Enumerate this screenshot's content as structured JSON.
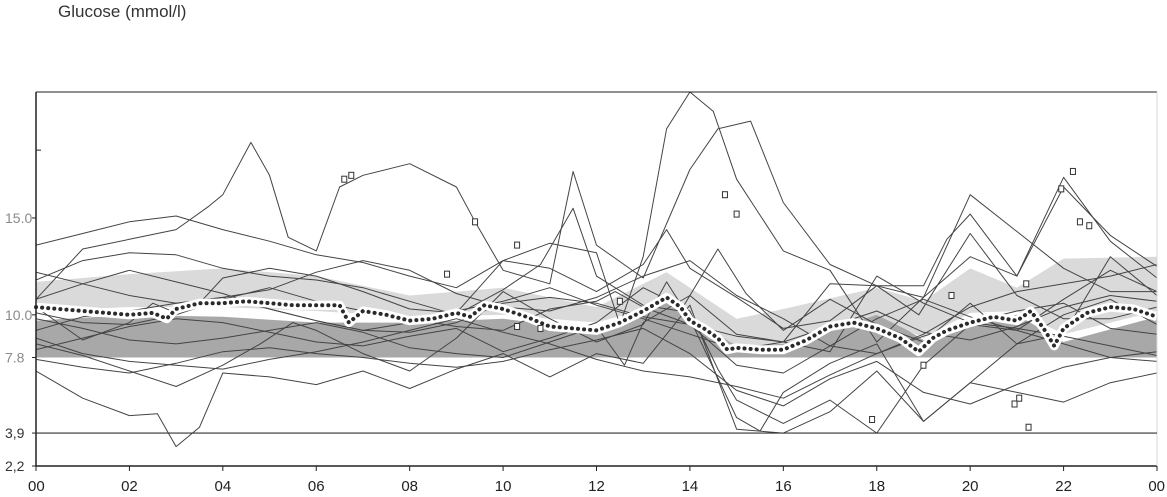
{
  "chart_data": {
    "type": "line",
    "title": "Glucose (mmol/l)",
    "xlabel": "",
    "ylabel": "Glucose (mmol/l)",
    "x_tick_labels": [
      "00",
      "02",
      "04",
      "06",
      "08",
      "10",
      "12",
      "14",
      "16",
      "18",
      "20",
      "22",
      "00"
    ],
    "xlim_hours": [
      0,
      24
    ],
    "ylim": [
      2.2,
      21.5
    ],
    "y_tick_labels": [
      {
        "label": "2,2",
        "value": 2.2
      },
      {
        "label": "3,9",
        "value": 3.9
      },
      {
        "label": "7.8",
        "value": 7.8
      },
      {
        "label": "10.0",
        "value": 10.0
      },
      {
        "label": "15.0",
        "value": 15.0
      }
    ],
    "reference_lines": [
      {
        "label": "3,9",
        "value": 3.9
      }
    ],
    "target_band": [
      7.8,
      10.0
    ],
    "bands": [
      {
        "name": "lower-quartile-band",
        "color": "#a8a8a8",
        "hours": [
          0,
          2,
          4,
          6,
          8,
          10,
          12,
          13.5,
          15,
          16,
          18,
          19,
          20,
          21,
          22,
          24
        ],
        "low": [
          7.8,
          7.8,
          7.8,
          7.8,
          7.8,
          7.8,
          7.8,
          7.8,
          7.8,
          7.8,
          7.8,
          7.8,
          7.8,
          7.8,
          7.8,
          7.8
        ],
        "high": [
          9.7,
          10.0,
          9.9,
          9.6,
          9.6,
          9.8,
          9.2,
          11.0,
          9.0,
          8.8,
          10.2,
          8.7,
          9.6,
          10.0,
          8.6,
          9.9
        ]
      },
      {
        "name": "upper-quartile-band",
        "color": "#dadada",
        "hours": [
          0,
          2,
          4,
          6,
          8,
          10,
          12,
          13.5,
          15,
          16,
          18,
          19,
          20,
          21,
          22,
          24
        ],
        "low": [
          10.2,
          10.4,
          10.4,
          10.2,
          9.9,
          10.0,
          9.6,
          10.6,
          8.4,
          8.5,
          10.0,
          8.8,
          10.1,
          10.2,
          9.0,
          10.2
        ],
        "high": [
          11.7,
          12.1,
          12.4,
          12.0,
          11.0,
          11.4,
          10.4,
          12.2,
          9.8,
          10.3,
          11.4,
          10.7,
          12.4,
          11.4,
          12.9,
          13.0
        ]
      }
    ],
    "series": [
      {
        "role": "median",
        "style": "dotted",
        "x": [
          0,
          0.5,
          1,
          1.5,
          2,
          2.5,
          2.8,
          3,
          3.5,
          4,
          4.5,
          5,
          5.5,
          6,
          6.5,
          6.7,
          7,
          7.5,
          8,
          8.5,
          9,
          9.3,
          9.6,
          10,
          10.5,
          11,
          11.5,
          12,
          12.5,
          13,
          13.5,
          13.8,
          14,
          14.3,
          14.6,
          14.8,
          15,
          15.5,
          16,
          16.5,
          17,
          17.5,
          18,
          18.5,
          18.9,
          19.2,
          19.5,
          20,
          20.5,
          21,
          21.3,
          21.6,
          21.8,
          22,
          22.5,
          23,
          23.5,
          24
        ],
        "y": [
          10.4,
          10.3,
          10.2,
          10.1,
          10.0,
          10.1,
          9.8,
          10.3,
          10.6,
          10.6,
          10.7,
          10.6,
          10.5,
          10.5,
          10.5,
          9.6,
          10.2,
          10.0,
          9.7,
          9.8,
          10.1,
          9.9,
          10.5,
          10.3,
          9.9,
          9.4,
          9.3,
          9.2,
          9.6,
          10.2,
          10.9,
          10.4,
          9.7,
          9.3,
          8.8,
          8.2,
          8.3,
          8.2,
          8.2,
          8.7,
          9.4,
          9.6,
          9.3,
          8.8,
          8.1,
          8.8,
          9.2,
          9.6,
          9.9,
          9.7,
          10.2,
          9.2,
          8.4,
          9.3,
          10.1,
          10.4,
          10.3,
          9.9
        ]
      },
      {
        "role": "individual-day",
        "x": [
          0,
          1,
          2,
          3,
          3.7,
          4,
          4.6,
          5,
          5.4,
          6,
          6.5,
          7,
          8,
          9,
          9.4,
          10,
          11,
          11.5,
          12,
          13,
          14,
          14.6,
          15.3,
          16,
          17,
          18,
          18.9,
          20,
          21,
          22,
          23,
          24
        ],
        "y": [
          10.8,
          13.4,
          13.9,
          14.4,
          15.6,
          16.2,
          18.9,
          17.2,
          14.0,
          13.3,
          16.6,
          17.2,
          17.8,
          16.6,
          14.8,
          12.3,
          11.6,
          17.4,
          13.6,
          11.9,
          17.5,
          19.6,
          20.0,
          15.8,
          12.6,
          11.5,
          10.0,
          14.2,
          11.0,
          9.8,
          9.8,
          10.4
        ]
      },
      {
        "role": "individual-day",
        "x": [
          0,
          1,
          2,
          3,
          4,
          5,
          6,
          7,
          8,
          9,
          10,
          11,
          12,
          13,
          13.5,
          14,
          15,
          16,
          17,
          18,
          19,
          20,
          21,
          22,
          23,
          24
        ],
        "y": [
          13.6,
          14.2,
          14.8,
          15.1,
          14.4,
          13.8,
          13.1,
          12.7,
          12.0,
          11.4,
          12.8,
          12.4,
          11.2,
          12.6,
          14.4,
          12.4,
          10.9,
          9.3,
          9.7,
          11.5,
          10.9,
          16.2,
          14.3,
          12.4,
          11.2,
          11.2
        ]
      },
      {
        "role": "individual-day",
        "x": [
          0,
          1,
          2,
          2.5,
          3,
          3.5,
          4,
          5,
          6,
          7,
          8,
          9,
          10,
          11,
          12,
          12.5,
          13,
          13.5,
          14,
          14.5,
          15,
          16,
          17,
          18,
          19,
          20,
          21,
          22,
          23,
          24
        ],
        "y": [
          10.4,
          8.7,
          9.6,
          10.6,
          10.1,
          10.6,
          11.9,
          12.4,
          12.0,
          11.2,
          10.3,
          10.1,
          12.8,
          13.7,
          13.2,
          9.5,
          13.0,
          19.6,
          21.5,
          20.5,
          17.0,
          13.3,
          12.3,
          8.6,
          10.9,
          13.0,
          12.0,
          17.1,
          13.8,
          11.9
        ]
      },
      {
        "role": "individual-day",
        "x": [
          0,
          1,
          2,
          3,
          4,
          4.8,
          5.5,
          6,
          7,
          8,
          9,
          10,
          11,
          12,
          13,
          13.5,
          14,
          15,
          15.5,
          16,
          17,
          18,
          19,
          20,
          21,
          22,
          23,
          24
        ],
        "y": [
          8.5,
          7.9,
          7.1,
          6.3,
          7.4,
          8.5,
          9.6,
          9.2,
          8.0,
          7.1,
          8.8,
          11.2,
          9.8,
          8.6,
          9.5,
          11.7,
          9.8,
          4.7,
          4.0,
          6.0,
          7.5,
          8.5,
          4.5,
          6.5,
          8.5,
          10.0,
          10.8,
          9.5
        ]
      },
      {
        "role": "individual-day",
        "x": [
          0,
          1,
          2,
          2.6,
          3,
          3.5,
          4,
          5,
          6,
          7,
          8,
          9,
          10,
          11,
          12,
          13,
          14,
          15,
          16,
          17,
          18,
          19,
          20,
          21,
          22,
          23,
          24
        ],
        "y": [
          7.1,
          5.7,
          4.8,
          4.9,
          3.2,
          4.2,
          7.0,
          6.8,
          6.4,
          7.1,
          6.2,
          7.2,
          8.0,
          6.8,
          8.0,
          7.5,
          10.5,
          4.1,
          3.9,
          5.0,
          7.1,
          4.5,
          6.5,
          6.0,
          5.5,
          6.5,
          7.0
        ]
      },
      {
        "role": "individual-day",
        "x": [
          0,
          1,
          2,
          3,
          4,
          5,
          6,
          7,
          8,
          9,
          10,
          10.8,
          11.5,
          12,
          13,
          13.8,
          14.6,
          15.2,
          16,
          17,
          18,
          19,
          20,
          21,
          22,
          23,
          24
        ],
        "y": [
          11.8,
          12.8,
          13.2,
          13.1,
          12.4,
          12.0,
          11.8,
          11.4,
          10.7,
          10.0,
          11.3,
          12.6,
          15.5,
          12.0,
          10.5,
          10.2,
          13.4,
          11.1,
          9.2,
          10.8,
          9.5,
          8.6,
          10.6,
          8.5,
          9.0,
          13.0,
          11.0
        ]
      },
      {
        "role": "individual-day",
        "x": [
          0,
          1,
          2,
          3,
          4,
          5,
          6,
          7,
          8,
          9,
          10,
          11,
          12,
          12.4,
          13,
          14,
          15,
          16,
          17,
          18,
          19,
          19.5,
          20,
          20.5,
          21,
          22,
          23,
          24
        ],
        "y": [
          10.1,
          9.6,
          9.5,
          10.0,
          10.8,
          11.4,
          10.7,
          10.2,
          9.8,
          9.4,
          9.2,
          10.3,
          10.7,
          11.2,
          10.4,
          9.5,
          8.9,
          8.6,
          11.6,
          11.5,
          11.5,
          13.9,
          15.2,
          13.6,
          12.0,
          16.6,
          14.1,
          12.5
        ]
      },
      {
        "role": "individual-day",
        "x": [
          0,
          1,
          2,
          3,
          4,
          5,
          6,
          7,
          8,
          9,
          10,
          11,
          12,
          12.6,
          13,
          14,
          15,
          16,
          17,
          18,
          19,
          20,
          21,
          22,
          23,
          24
        ],
        "y": [
          9.8,
          9.3,
          8.7,
          8.5,
          8.8,
          9.2,
          9.6,
          9.1,
          8.3,
          8.0,
          7.8,
          8.6,
          9.4,
          7.4,
          9.6,
          11.0,
          9.0,
          8.6,
          8.1,
          12.0,
          10.6,
          9.6,
          10.2,
          10.6,
          9.3,
          9.0
        ]
      },
      {
        "role": "individual-day",
        "x": [
          0,
          1,
          2,
          3,
          4,
          5,
          6,
          7,
          8,
          9,
          10,
          11,
          12,
          13,
          14,
          14.6,
          15,
          16,
          17,
          18,
          19,
          20,
          21,
          22,
          23,
          24
        ],
        "y": [
          8.2,
          8.8,
          9.4,
          9.8,
          9.6,
          9.1,
          8.6,
          8.4,
          8.9,
          9.3,
          8.1,
          8.8,
          9.6,
          11.4,
          10.2,
          7.2,
          5.6,
          4.4,
          5.6,
          3.9,
          7.4,
          9.5,
          9.2,
          8.5,
          7.8,
          7.6
        ]
      },
      {
        "role": "individual-day",
        "x": [
          0,
          1,
          2,
          3,
          4,
          5,
          6,
          7,
          8,
          9,
          10,
          11,
          12,
          13,
          14,
          15,
          16,
          17,
          18,
          19,
          20,
          21,
          22,
          23,
          24
        ],
        "y": [
          9.2,
          9.9,
          10.2,
          10.6,
          10.9,
          10.3,
          9.7,
          9.2,
          9.1,
          9.6,
          10.6,
          10.9,
          10.6,
          9.9,
          9.5,
          7.4,
          7.0,
          8.4,
          9.8,
          10.8,
          9.9,
          9.2,
          10.8,
          12.3,
          11.2
        ]
      },
      {
        "role": "individual-day",
        "x": [
          0,
          1,
          2,
          3,
          4,
          5,
          6,
          7,
          8,
          9,
          10,
          11,
          12,
          13,
          14,
          15,
          16,
          17,
          18,
          19,
          20,
          21,
          22,
          23,
          24
        ],
        "y": [
          12.2,
          11.6,
          11.0,
          10.6,
          10.9,
          11.3,
          12.2,
          12.8,
          12.3,
          11.1,
          10.4,
          10.2,
          10.9,
          12.0,
          12.8,
          11.0,
          9.8,
          8.4,
          8.0,
          9.0,
          10.4,
          11.2,
          11.6,
          12.0,
          12.6
        ]
      },
      {
        "role": "individual-day",
        "x": [
          0,
          1,
          2,
          3,
          4,
          5,
          6,
          7,
          8,
          9,
          10,
          11,
          12,
          13,
          14,
          15,
          16,
          17,
          18,
          19,
          20,
          21,
          22,
          23,
          24
        ],
        "y": [
          8.8,
          8.0,
          7.6,
          7.4,
          7.2,
          7.7,
          8.1,
          8.6,
          9.2,
          9.8,
          9.1,
          8.5,
          7.7,
          7.1,
          6.8,
          6.3,
          5.7,
          6.9,
          8.0,
          8.9,
          9.6,
          9.3,
          8.9,
          8.4,
          7.9
        ]
      },
      {
        "role": "individual-day",
        "x": [
          0,
          1,
          2,
          3,
          4,
          5,
          6,
          7,
          8,
          9,
          10,
          11,
          12,
          13,
          14,
          15,
          16,
          17,
          18,
          19,
          20,
          21,
          22,
          23,
          24
        ],
        "y": [
          10.8,
          11.6,
          12.3,
          11.7,
          11.1,
          10.3,
          9.7,
          9.2,
          9.6,
          10.2,
          10.7,
          11.4,
          10.5,
          9.8,
          9.0,
          8.2,
          8.6,
          9.4,
          10.2,
          9.1,
          8.7,
          9.4,
          10.4,
          11.0,
          10.7
        ]
      },
      {
        "role": "individual-day",
        "x": [
          0,
          1,
          2,
          3,
          4,
          5,
          6,
          7,
          8,
          9,
          10,
          11,
          12,
          13,
          14,
          15,
          16,
          17,
          18,
          19,
          20,
          21,
          22,
          23,
          24
        ],
        "y": [
          7.7,
          7.3,
          7.0,
          7.5,
          8.1,
          8.3,
          8.0,
          7.8,
          7.5,
          7.3,
          7.6,
          8.2,
          8.7,
          9.3,
          8.0,
          6.1,
          5.3,
          6.7,
          7.6,
          6.0,
          5.4,
          6.4,
          7.3,
          7.8,
          8.1
        ]
      }
    ],
    "markers": [
      {
        "x": 6.6,
        "y": 17.0
      },
      {
        "x": 6.75,
        "y": 17.2
      },
      {
        "x": 9.4,
        "y": 14.8
      },
      {
        "x": 10.3,
        "y": 13.6
      },
      {
        "x": 8.8,
        "y": 12.1
      },
      {
        "x": 10.3,
        "y": 9.4
      },
      {
        "x": 10.8,
        "y": 9.3
      },
      {
        "x": 12.5,
        "y": 10.7
      },
      {
        "x": 14.75,
        "y": 16.2
      },
      {
        "x": 15.0,
        "y": 15.2
      },
      {
        "x": 17.9,
        "y": 4.6
      },
      {
        "x": 19.0,
        "y": 7.4
      },
      {
        "x": 19.6,
        "y": 11.0
      },
      {
        "x": 20.95,
        "y": 5.4
      },
      {
        "x": 21.05,
        "y": 5.7
      },
      {
        "x": 21.2,
        "y": 11.6
      },
      {
        "x": 21.25,
        "y": 4.2
      },
      {
        "x": 21.95,
        "y": 16.5
      },
      {
        "x": 22.2,
        "y": 17.4
      },
      {
        "x": 22.35,
        "y": 14.8
      },
      {
        "x": 22.55,
        "y": 14.6
      }
    ],
    "grid": false,
    "legend": "none"
  },
  "colors": {
    "line": "#444444",
    "median_dot": "#2a2a2a",
    "median_halo": "#ffffff",
    "axis": "#222222",
    "reference_line": "#333333"
  }
}
